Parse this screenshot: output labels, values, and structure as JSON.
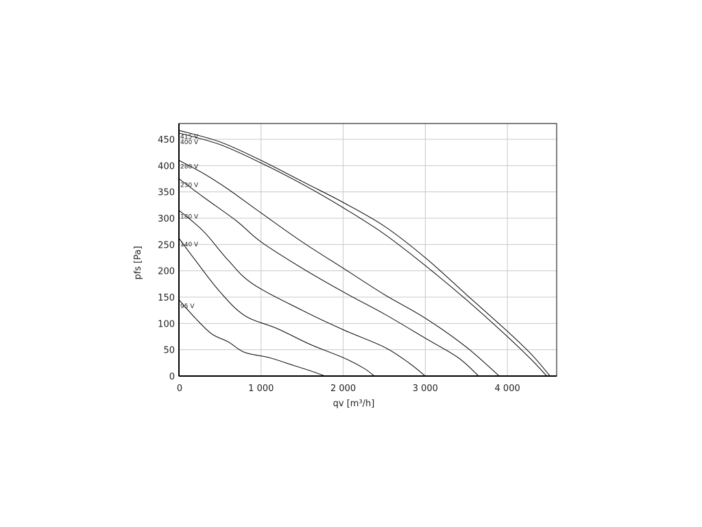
{
  "chart_data": {
    "type": "line",
    "xlabel": "qv [m³/h]",
    "ylabel": "pfs [Pa]",
    "xlim": [
      0,
      4600
    ],
    "ylim": [
      0,
      480
    ],
    "xticks": [
      0,
      1000,
      2000,
      3000,
      4000
    ],
    "xtick_labels": [
      "0",
      "1 000",
      "2 000",
      "3 000",
      "4 000"
    ],
    "yticks": [
      0,
      50,
      100,
      150,
      200,
      250,
      300,
      350,
      400,
      450
    ],
    "ytick_labels": [
      "0",
      "50",
      "100",
      "150",
      "200",
      "250",
      "300",
      "350",
      "400",
      "450"
    ],
    "grid": true,
    "legend": "none",
    "series": [
      {
        "name": "415 V",
        "x": [
          0,
          500,
          1000,
          1500,
          2000,
          2500,
          3000,
          3500,
          4000,
          4300,
          4520
        ],
        "y": [
          467,
          445,
          410,
          370,
          330,
          285,
          225,
          155,
          85,
          40,
          0
        ]
      },
      {
        "name": "400 V",
        "x": [
          0,
          500,
          1000,
          1500,
          2000,
          2500,
          3000,
          3500,
          4000,
          4300,
          4480
        ],
        "y": [
          462,
          440,
          405,
          365,
          320,
          270,
          210,
          145,
          75,
          30,
          0
        ]
      },
      {
        "name": "280 V",
        "x": [
          0,
          300,
          600,
          1000,
          1500,
          2000,
          2500,
          3000,
          3500,
          3900
        ],
        "y": [
          410,
          385,
          355,
          310,
          255,
          205,
          155,
          110,
          55,
          0
        ]
      },
      {
        "name": "230 V",
        "x": [
          0,
          300,
          700,
          1000,
          1500,
          2000,
          2500,
          3000,
          3400,
          3650
        ],
        "y": [
          375,
          340,
          295,
          255,
          205,
          160,
          118,
          72,
          35,
          0
        ]
      },
      {
        "name": "180 V",
        "x": [
          0,
          300,
          600,
          900,
          1500,
          2000,
          2500,
          2800,
          3000
        ],
        "y": [
          315,
          275,
          220,
          175,
          125,
          88,
          55,
          25,
          0
        ]
      },
      {
        "name": "140 V",
        "x": [
          0,
          200,
          500,
          800,
          1200,
          1600,
          2000,
          2250,
          2380
        ],
        "y": [
          262,
          220,
          160,
          115,
          90,
          60,
          35,
          15,
          0
        ]
      },
      {
        "name": "95 V",
        "x": [
          0,
          200,
          400,
          600,
          800,
          1100,
          1400,
          1600,
          1780
        ],
        "y": [
          145,
          110,
          80,
          65,
          45,
          35,
          20,
          10,
          0
        ]
      }
    ]
  }
}
